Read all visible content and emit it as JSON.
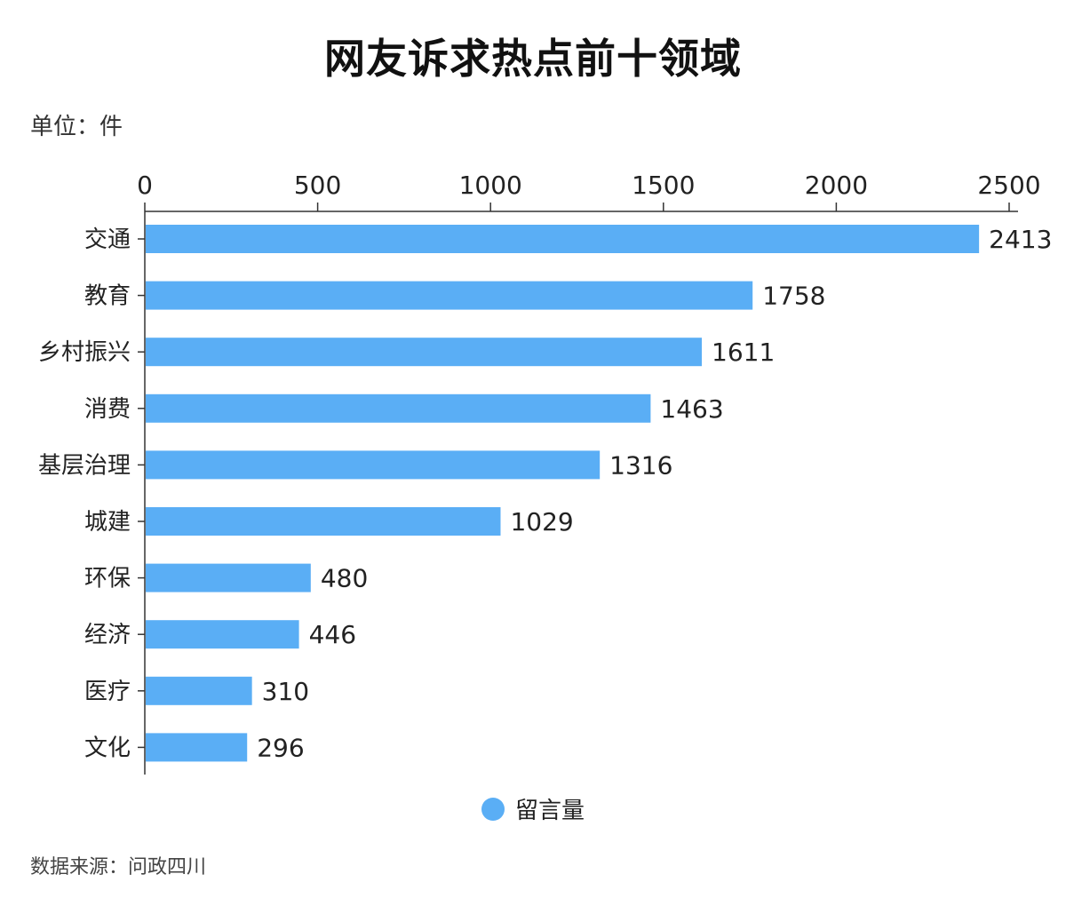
{
  "title": "网友诉求热点前十领域",
  "unit_label": "单位：件",
  "source_label": "数据来源：问政四川",
  "colors": {
    "bar": "#5aaef5",
    "axis": "#333333"
  },
  "chart_data": {
    "type": "bar",
    "orientation": "horizontal",
    "x_axis_position": "top",
    "xlim": [
      0,
      2500
    ],
    "xticks": [
      "0",
      "500",
      "1000",
      "1500",
      "2000",
      "2500"
    ],
    "categories": [
      "交通",
      "教育",
      "乡村振兴",
      "消费",
      "基层治理",
      "城建",
      "环保",
      "经济",
      "医疗",
      "文化"
    ],
    "series": [
      {
        "name": "留言量",
        "values": [
          2413,
          1758,
          1611,
          1463,
          1316,
          1029,
          480,
          446,
          310,
          296
        ]
      }
    ],
    "legend_position": "bottom-center",
    "grid": false
  }
}
